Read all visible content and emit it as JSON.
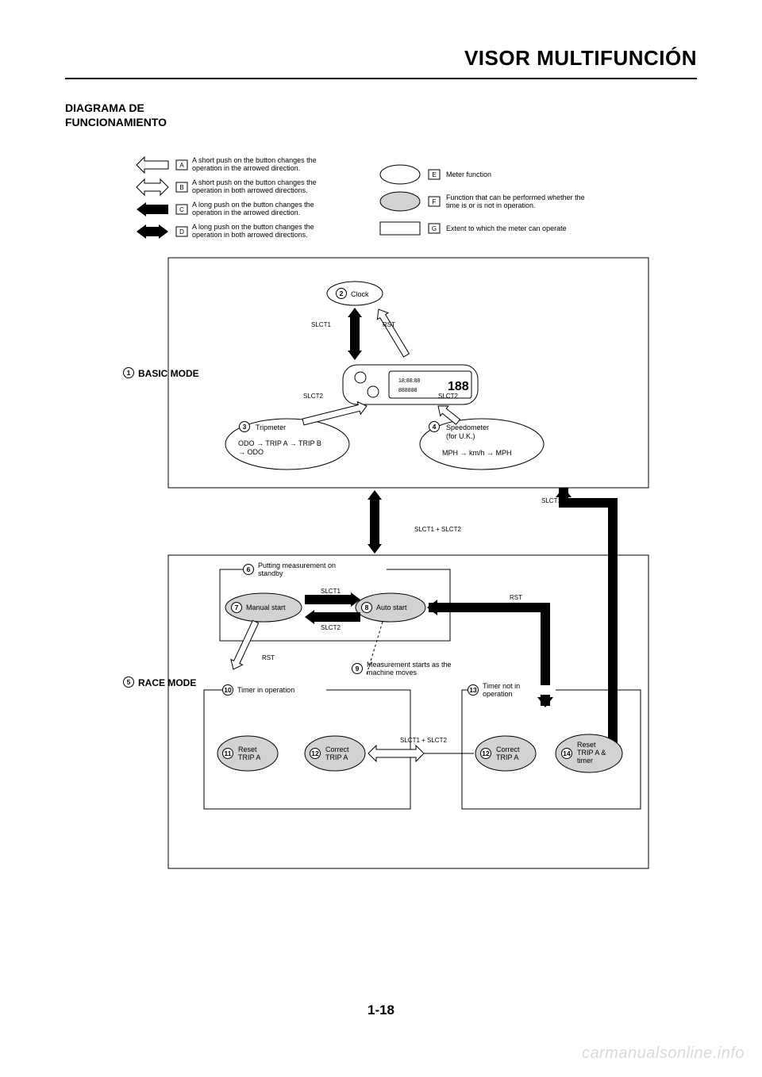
{
  "page": {
    "title": "VISOR MULTIFUNCIÓN",
    "section_heading_line1": "DIAGRAMA DE",
    "section_heading_line2": "FUNCIONAMIENTO",
    "page_number": "1-18",
    "watermark": "carmanualsonline.info"
  },
  "legend": {
    "arrows": [
      {
        "letter": "A",
        "text": "A short push on the button changes the operation in the arrowed direction."
      },
      {
        "letter": "B",
        "text": "A short push on the button changes the operation in both arrowed directions."
      },
      {
        "letter": "C",
        "text": "A long push on the button changes the operation in the arrowed direction."
      },
      {
        "letter": "D",
        "text": "A long push on the button changes the operation in both arrowed directions."
      }
    ],
    "shapes": [
      {
        "letter": "E",
        "text": "Meter function"
      },
      {
        "letter": "F",
        "text": "Function that can be performed whether the time is or is not in operation."
      },
      {
        "letter": "G",
        "text": "Extent to which the meter can operate"
      }
    ]
  },
  "modes": {
    "basic": {
      "num": "1",
      "label": "BASIC MODE"
    },
    "race": {
      "num": "5",
      "label": "RACE MODE"
    }
  },
  "nodes": {
    "clock": {
      "num": "2",
      "label": "Clock"
    },
    "tripmeter": {
      "num": "3",
      "label": "Tripmeter",
      "sub": "ODO → TRIP A → TRIP B → ODO"
    },
    "speedometer": {
      "num": "4",
      "label": "Speedometer (for U.K.)",
      "sub": "MPH → km/h → MPH"
    },
    "standby": {
      "num": "6",
      "label": "Putting measurement on standby"
    },
    "manual_start": {
      "num": "7",
      "label": "Manual start"
    },
    "auto_start": {
      "num": "8",
      "label": "Auto start"
    },
    "meas_starts": {
      "num": "9",
      "label": "Measurement starts as the machine moves"
    },
    "timer_op": {
      "num": "10",
      "label": "Timer in operation"
    },
    "reset_a": {
      "num": "11",
      "label": "Reset TRIP A"
    },
    "correct_a": {
      "num": "12",
      "label": "Correct TRIP A"
    },
    "correct_a2": {
      "num": "12",
      "label": "Correct TRIP A"
    },
    "timer_not_op": {
      "num": "13",
      "label": "Timer not in operation"
    },
    "reset_a_timer": {
      "num": "14",
      "label": "Reset TRIP A & timer"
    }
  },
  "arrow_labels": {
    "slct1": "SLCT1",
    "slct2": "SLCT2",
    "rst": "RST",
    "slct12": "SLCT1 + SLCT2"
  },
  "style": {
    "font_family": "Arial, Helvetica, sans-serif",
    "text_color": "#000000",
    "bg_color": "#ffffff",
    "border_color": "#000000",
    "shade_fill": "#d2d2d2",
    "watermark_color": "#d9d9d9",
    "title_fontsize": 26,
    "heading_fontsize": 14,
    "body_fontsize": 10,
    "label_fontsize": 9,
    "arrowlabel_fontsize": 8,
    "page_number_fontsize": 17,
    "stroke_width": 1
  }
}
